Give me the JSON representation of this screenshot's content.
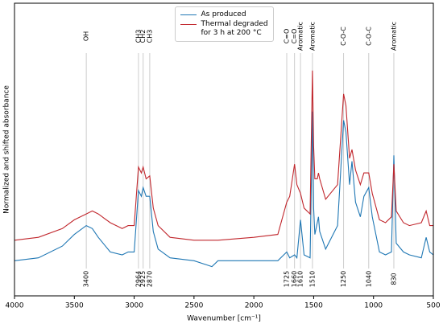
{
  "chart_data": {
    "type": "line",
    "xlabel": "Wavenumber [cm⁻¹]",
    "ylabel": "Normalized and shifted absorbance",
    "xlim": [
      4000,
      500
    ],
    "xticks": [
      4000,
      3500,
      3000,
      2500,
      2000,
      1500,
      1000,
      500
    ],
    "ylim": [
      0,
      1
    ],
    "legend": "upper center",
    "x": [
      4000,
      3800,
      3600,
      3500,
      3400,
      3350,
      3300,
      3200,
      3100,
      3050,
      3000,
      2964,
      2940,
      2925,
      2900,
      2870,
      2840,
      2800,
      2700,
      2500,
      2350,
      2300,
      2000,
      1800,
      1725,
      1700,
      1660,
      1640,
      1610,
      1580,
      1530,
      1510,
      1500,
      1490,
      1470,
      1460,
      1450,
      1400,
      1300,
      1250,
      1230,
      1200,
      1180,
      1150,
      1110,
      1080,
      1040,
      1010,
      950,
      900,
      850,
      830,
      810,
      750,
      700,
      600,
      560,
      530,
      500
    ],
    "series": [
      {
        "name": "As produced",
        "color": "#1f77b4",
        "values": [
          0.12,
          0.13,
          0.17,
          0.21,
          0.24,
          0.23,
          0.2,
          0.15,
          0.14,
          0.15,
          0.15,
          0.36,
          0.34,
          0.37,
          0.34,
          0.34,
          0.22,
          0.16,
          0.13,
          0.12,
          0.1,
          0.12,
          0.12,
          0.12,
          0.15,
          0.13,
          0.14,
          0.13,
          0.26,
          0.14,
          0.13,
          0.63,
          0.3,
          0.21,
          0.25,
          0.27,
          0.22,
          0.16,
          0.24,
          0.6,
          0.56,
          0.38,
          0.46,
          0.32,
          0.27,
          0.34,
          0.37,
          0.27,
          0.15,
          0.14,
          0.15,
          0.48,
          0.18,
          0.15,
          0.14,
          0.13,
          0.2,
          0.15,
          0.14
        ]
      },
      {
        "name": "Thermal degraded\nfor 3 h at 200 °C",
        "color": "#c1272d",
        "values": [
          0.19,
          0.2,
          0.23,
          0.26,
          0.28,
          0.29,
          0.28,
          0.25,
          0.23,
          0.24,
          0.24,
          0.44,
          0.42,
          0.44,
          0.4,
          0.41,
          0.3,
          0.24,
          0.2,
          0.19,
          0.19,
          0.19,
          0.2,
          0.21,
          0.32,
          0.34,
          0.45,
          0.38,
          0.35,
          0.3,
          0.28,
          0.77,
          0.51,
          0.4,
          0.4,
          0.42,
          0.4,
          0.33,
          0.38,
          0.69,
          0.65,
          0.47,
          0.5,
          0.43,
          0.38,
          0.42,
          0.42,
          0.35,
          0.26,
          0.25,
          0.27,
          0.45,
          0.29,
          0.25,
          0.24,
          0.25,
          0.29,
          0.24,
          0.24
        ]
      }
    ],
    "annotations": [
      {
        "x": 3400,
        "label": "OH"
      },
      {
        "x": 2964,
        "label": "CH3"
      },
      {
        "x": 2925,
        "label": "CH2"
      },
      {
        "x": 2870,
        "label": "CH3"
      },
      {
        "x": 1725,
        "label": "C=O"
      },
      {
        "x": 1660,
        "label": "C=O"
      },
      {
        "x": 1610,
        "label": "Aromatic"
      },
      {
        "x": 1510,
        "label": "Aromatic"
      },
      {
        "x": 1250,
        "label": "C-O-C"
      },
      {
        "x": 1040,
        "label": "C-O-C"
      },
      {
        "x": 830,
        "label": "Aromatic"
      }
    ]
  }
}
